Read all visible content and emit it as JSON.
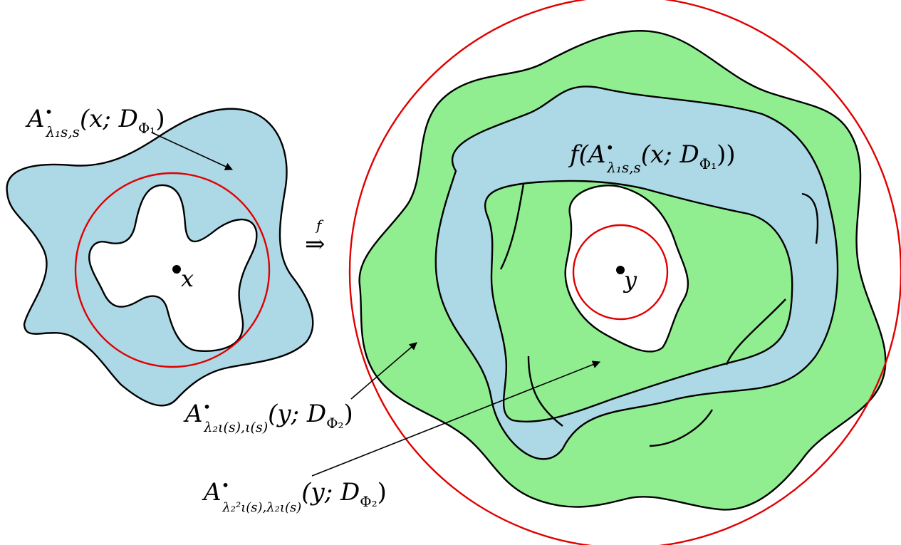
{
  "colors": {
    "annulus_fill": "#add8e6",
    "outer_fill": "#90ee90",
    "circle_stroke": "#e00000",
    "outline": "#000000"
  },
  "left": {
    "label": {
      "base": "A",
      "sup": "•",
      "sub": "λ₁s,s",
      "args": "(x; D",
      "args_sub": "Φ₁",
      "close": ")"
    },
    "point": "x"
  },
  "map": {
    "arrow": "⇒",
    "name": "f"
  },
  "right": {
    "image_label": {
      "pre": "f(A",
      "sup": "•",
      "sub": "λ₁s,s",
      "args": "(x; D",
      "args_sub": "Φ₁",
      "close": "))"
    },
    "point": "y",
    "label_big": {
      "base": "A",
      "sup": "•",
      "sub": "λ₂ι(s),ι(s)",
      "args": "(y; D",
      "args_sub": "Φ₂",
      "close": ")"
    },
    "label_small": {
      "base": "A",
      "sup": "•",
      "sub": "λ₂²ι(s),λ₂ι(s)",
      "args": "(y; D",
      "args_sub": "Φ₂",
      "close": ")"
    }
  }
}
